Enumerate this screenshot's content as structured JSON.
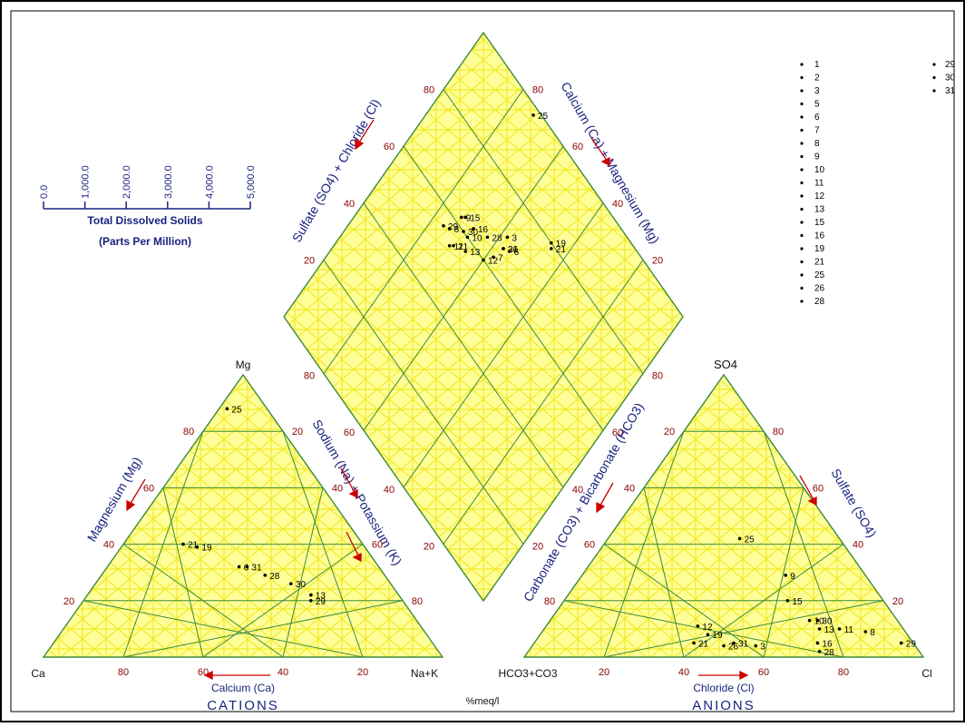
{
  "colors": {
    "fill": "#ffff99",
    "hatch": "#f2ea2a",
    "grid": "#3e8a3a",
    "axis_blue": "#1a237e",
    "tick_red": "#8b0000",
    "arrow_red": "#cc0000"
  },
  "tds_scale": {
    "ticks": [
      "0.0",
      "1,000.0",
      "2,000.0",
      "3,000.0",
      "4,000.0",
      "5,000.0"
    ],
    "title": "Total Dissolved Solids",
    "subtitle": "(Parts Per Million)"
  },
  "cations": {
    "vertex_top": "Mg",
    "vertex_left": "Ca",
    "vertex_right": "Na+K",
    "left_axis": "Magnesium (Mg)",
    "right_axis": "Sodium (Na) + Potassium (K)",
    "bottom_axis": "Calcium (Ca)",
    "title": "CATIONS"
  },
  "anions": {
    "vertex_top": "SO4",
    "vertex_left": "HCO3+CO3",
    "vertex_right": "Cl",
    "left_axis": "Carbonate (CO3) + Bicarbonate (HCO3)",
    "right_axis": "Sulfate (SO4)",
    "bottom_axis": "Chloride (Cl)",
    "title": "ANIONS"
  },
  "diamond": {
    "upper_left_axis": "Sulfate (SO4) + Chloride (Cl)",
    "upper_right_axis": "Calcium (Ca) + Magnesium (Mg)"
  },
  "units_label": "%meq/l",
  "tick_values": [
    "20",
    "40",
    "60",
    "80"
  ],
  "legend": {
    "col1": [
      "1",
      "2",
      "3",
      "5",
      "6",
      "7",
      "8",
      "9",
      "10",
      "11",
      "12",
      "13",
      "15",
      "16",
      "19",
      "21",
      "25",
      "26",
      "28"
    ],
    "col2": [
      "29",
      "30",
      "31"
    ]
  },
  "chart_data": [
    {
      "type": "scatter",
      "name": "cation-ternary",
      "axes": [
        "Ca",
        "Mg",
        "Na+K"
      ],
      "units": "%meq/l",
      "points": [
        {
          "label": "25",
          "Ca": 10,
          "Mg": 88,
          "Na+K": 2
        },
        {
          "label": "21",
          "Ca": 45,
          "Mg": 40,
          "Na+K": 15
        },
        {
          "label": "19",
          "Ca": 42,
          "Mg": 39,
          "Na+K": 19
        },
        {
          "label": "6",
          "Ca": 35,
          "Mg": 32,
          "Na+K": 33
        },
        {
          "label": "31",
          "Ca": 33,
          "Mg": 32,
          "Na+K": 35
        },
        {
          "label": "28",
          "Ca": 30,
          "Mg": 29,
          "Na+K": 41
        },
        {
          "label": "30",
          "Ca": 25,
          "Mg": 26,
          "Na+K": 49
        },
        {
          "label": "13",
          "Ca": 22,
          "Mg": 22,
          "Na+K": 56
        },
        {
          "label": "29",
          "Ca": 23,
          "Mg": 20,
          "Na+K": 57
        }
      ]
    },
    {
      "type": "scatter",
      "name": "anion-ternary",
      "axes": [
        "HCO3+CO3",
        "SO4",
        "Cl"
      ],
      "units": "%meq/l",
      "points": [
        {
          "label": "25",
          "HCO3+CO3": 25,
          "SO4": 42,
          "Cl": 33
        },
        {
          "label": "9",
          "HCO3+CO3": 20,
          "SO4": 29,
          "Cl": 51
        },
        {
          "label": "15",
          "HCO3+CO3": 24,
          "SO4": 20,
          "Cl": 56
        },
        {
          "label": "10",
          "HCO3+CO3": 22,
          "SO4": 13,
          "Cl": 65
        },
        {
          "label": "30",
          "HCO3+CO3": 20,
          "SO4": 13,
          "Cl": 67
        },
        {
          "label": "13",
          "HCO3+CO3": 21,
          "SO4": 10,
          "Cl": 69
        },
        {
          "label": "11",
          "HCO3+CO3": 16,
          "SO4": 10,
          "Cl": 74
        },
        {
          "label": "8",
          "HCO3+CO3": 10,
          "SO4": 9,
          "Cl": 81
        },
        {
          "label": "16",
          "HCO3+CO3": 24,
          "SO4": 5,
          "Cl": 71
        },
        {
          "label": "28",
          "HCO3+CO3": 25,
          "SO4": 2,
          "Cl": 73
        },
        {
          "label": "29",
          "HCO3+CO3": 3,
          "SO4": 5,
          "Cl": 92
        },
        {
          "label": "12",
          "HCO3+CO3": 51,
          "SO4": 11,
          "Cl": 38
        },
        {
          "label": "19",
          "HCO3+CO3": 50,
          "SO4": 8,
          "Cl": 42
        },
        {
          "label": "21",
          "HCO3+CO3": 55,
          "SO4": 5,
          "Cl": 40
        },
        {
          "label": "26",
          "HCO3+CO3": 48,
          "SO4": 4,
          "Cl": 48
        },
        {
          "label": "31",
          "HCO3+CO3": 45,
          "SO4": 5,
          "Cl": 50
        },
        {
          "label": "3",
          "HCO3+CO3": 40,
          "SO4": 4,
          "Cl": 56
        }
      ]
    },
    {
      "type": "scatter",
      "name": "diamond",
      "axes": [
        "SO4+Cl",
        "Ca+Mg"
      ],
      "units": "%meq/l",
      "points": [
        {
          "label": "25",
          "SO4+Cl": 73,
          "Ca+Mg": 98
        },
        {
          "label": "19",
          "SO4+Cl": 46,
          "Ca+Mg": 80
        },
        {
          "label": "21",
          "SO4+Cl": 45,
          "Ca+Mg": 79
        },
        {
          "label": "15",
          "SO4+Cl": 72,
          "Ca+Mg": 63
        },
        {
          "label": "9",
          "SO4+Cl": 73,
          "Ca+Mg": 62
        },
        {
          "label": "16",
          "SO4+Cl": 68,
          "Ca+Mg": 63
        },
        {
          "label": "30",
          "SO4+Cl": 70,
          "Ca+Mg": 60
        },
        {
          "label": "8",
          "SO4+Cl": 74,
          "Ca+Mg": 57
        },
        {
          "label": "29",
          "SO4+Cl": 76,
          "Ca+Mg": 56
        },
        {
          "label": "3",
          "SO4+Cl": 58,
          "Ca+Mg": 70
        },
        {
          "label": "28",
          "SO4+Cl": 63,
          "Ca+Mg": 65
        },
        {
          "label": "10",
          "SO4+Cl": 68,
          "Ca+Mg": 60
        },
        {
          "label": "31",
          "SO4+Cl": 57,
          "Ca+Mg": 67
        },
        {
          "label": "21",
          "SO4+Cl": 70,
          "Ca+Mg": 55
        },
        {
          "label": "11",
          "SO4+Cl": 71,
          "Ca+Mg": 54
        },
        {
          "label": "6",
          "SO4+Cl": 55,
          "Ca+Mg": 68
        },
        {
          "label": "26",
          "SO4+Cl": 57,
          "Ca+Mg": 67
        },
        {
          "label": "13",
          "SO4+Cl": 66,
          "Ca+Mg": 57
        },
        {
          "label": "7",
          "SO4+Cl": 58,
          "Ca+Mg": 63
        },
        {
          "label": "12",
          "SO4+Cl": 60,
          "Ca+Mg": 60
        }
      ]
    }
  ]
}
